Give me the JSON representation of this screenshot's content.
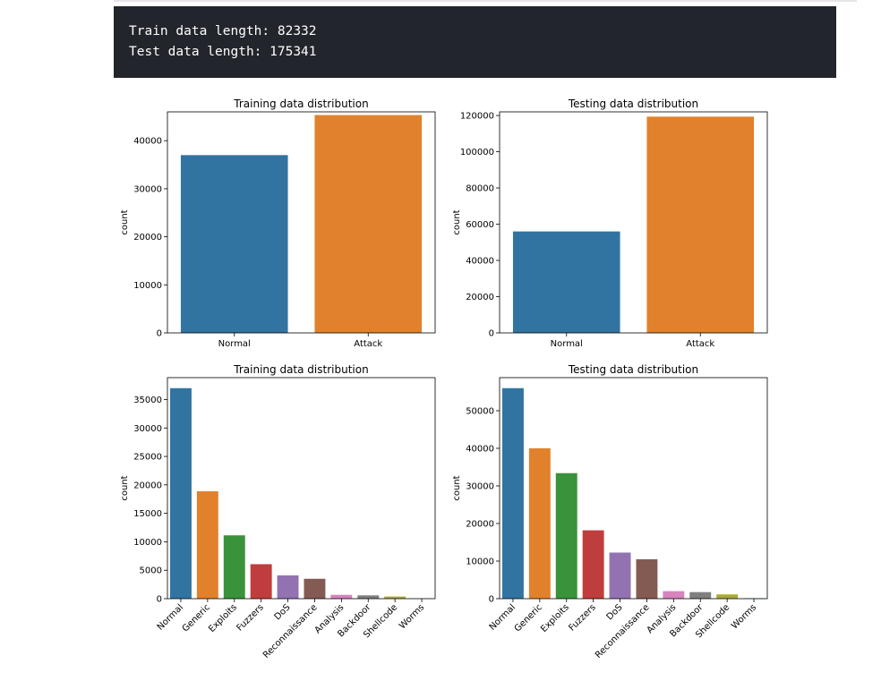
{
  "console": {
    "line1": "Train data length: 82332",
    "line2": "Test data length: 175341"
  },
  "colors": {
    "palette": [
      "#3274a1",
      "#e1812c",
      "#3a923a",
      "#c03d3e",
      "#9372b2",
      "#845b53",
      "#d684bd",
      "#7f7f7f",
      "#a9aa35",
      "#2eb4c6"
    ],
    "console_bg": "#22252b"
  },
  "chart_data": [
    {
      "type": "bar",
      "title": "Training data distribution",
      "xlabel": "",
      "ylabel": "count",
      "categories": [
        "Normal",
        "Attack"
      ],
      "values": [
        37000,
        45332
      ],
      "ylim": [
        0,
        46000
      ],
      "yticks": [
        0,
        10000,
        20000,
        30000,
        40000
      ],
      "grid": false,
      "rotate_labels": false
    },
    {
      "type": "bar",
      "title": "Testing data distribution",
      "xlabel": "",
      "ylabel": "count",
      "categories": [
        "Normal",
        "Attack"
      ],
      "values": [
        56000,
        119341
      ],
      "ylim": [
        0,
        122000
      ],
      "yticks": [
        0,
        20000,
        40000,
        60000,
        80000,
        100000,
        120000
      ],
      "grid": false,
      "rotate_labels": false
    },
    {
      "type": "bar",
      "title": "Training data distribution",
      "xlabel": "",
      "ylabel": "count",
      "categories": [
        "Normal",
        "Generic",
        "Exploits",
        "Fuzzers",
        "DoS",
        "Reconnaissance",
        "Analysis",
        "Backdoor",
        "Shellcode",
        "Worms"
      ],
      "values": [
        37000,
        18871,
        11132,
        6062,
        4089,
        3496,
        677,
        583,
        378,
        44
      ],
      "ylim": [
        0,
        38850
      ],
      "yticks": [
        0,
        5000,
        10000,
        15000,
        20000,
        25000,
        30000,
        35000
      ],
      "grid": false,
      "rotate_labels": true
    },
    {
      "type": "bar",
      "title": "Testing data distribution",
      "xlabel": "",
      "ylabel": "count",
      "categories": [
        "Normal",
        "Generic",
        "Exploits",
        "Fuzzers",
        "DoS",
        "Reconnaissance",
        "Analysis",
        "Backdoor",
        "Shellcode",
        "Worms"
      ],
      "values": [
        56000,
        40000,
        33393,
        18184,
        12264,
        10491,
        2000,
        1746,
        1133,
        130
      ],
      "ylim": [
        0,
        58800
      ],
      "yticks": [
        0,
        10000,
        20000,
        30000,
        40000,
        50000
      ],
      "grid": false,
      "rotate_labels": true
    }
  ]
}
